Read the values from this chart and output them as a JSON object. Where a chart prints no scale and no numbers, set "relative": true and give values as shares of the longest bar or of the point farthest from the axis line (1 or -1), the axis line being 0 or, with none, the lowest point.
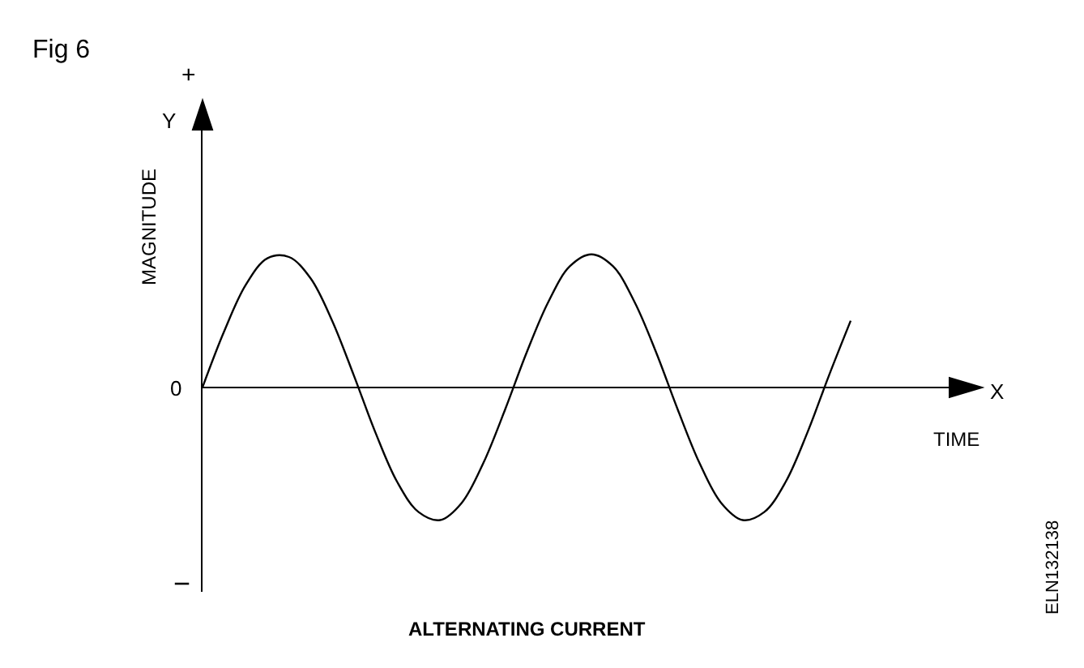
{
  "chart_data": {
    "type": "line",
    "relative": true,
    "title": "Fig 6",
    "xlabel": "TIME",
    "ylabel": "MAGNITUDE",
    "annotations": [
      "+",
      "Y",
      "0",
      "−",
      "X",
      "ALTERNATING CURRENT",
      "ELN132138"
    ],
    "categories": [
      null,
      null,
      null,
      null,
      null,
      null,
      null,
      null,
      null,
      null,
      null,
      null,
      null,
      null,
      null,
      null,
      null,
      null,
      null,
      null,
      null,
      null,
      null,
      null,
      null,
      null,
      null,
      null,
      null,
      null,
      null
    ],
    "series": [
      {
        "color": "#000000",
        "values": [
          0,
          0.42,
          0.77,
          0.97,
          0.98,
          0.82,
          0.5,
          0.09,
          -0.34,
          -0.71,
          -0.94,
          -1.0,
          -0.87,
          -0.57,
          -0.17,
          0.26,
          0.64,
          0.91,
          1.0,
          0.91,
          0.64,
          0.26,
          -0.17,
          -0.57,
          -0.87,
          -1.0,
          -0.94,
          -0.71,
          -0.34,
          0.09,
          0.5
        ]
      }
    ],
    "marker": "none",
    "line_style": "solid"
  }
}
